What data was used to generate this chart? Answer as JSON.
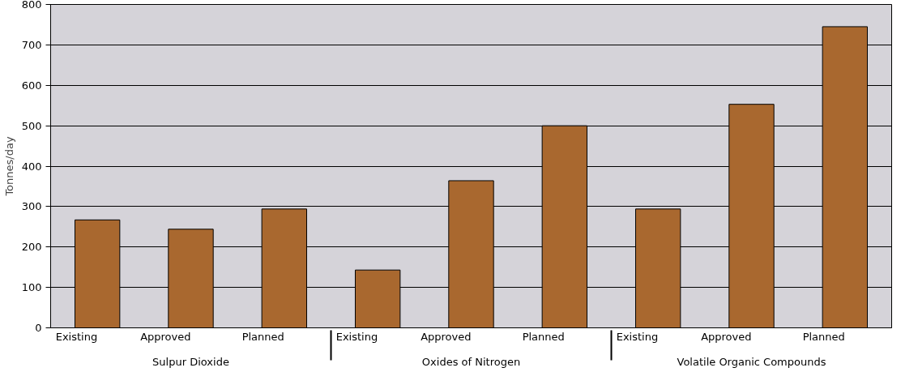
{
  "chart_data": {
    "type": "bar",
    "ylabel": "Tonnes/day",
    "categories": [
      "Existing",
      "Approved",
      "Planned",
      "Existing",
      "Approved",
      "Planned",
      "Existing",
      "Approved",
      "Planned"
    ],
    "annotations": [
      "Sulpur Dioxide",
      "Oxides of Nitrogen",
      "Volatile Organic Compounds"
    ],
    "values": [
      267,
      244,
      294,
      143,
      364,
      500,
      294,
      553,
      745
    ],
    "color": "#a9682f",
    "ylim": [
      0,
      800
    ],
    "yticks": [
      0,
      100,
      200,
      300,
      400,
      500,
      600,
      700,
      800
    ],
    "grid": "y"
  }
}
